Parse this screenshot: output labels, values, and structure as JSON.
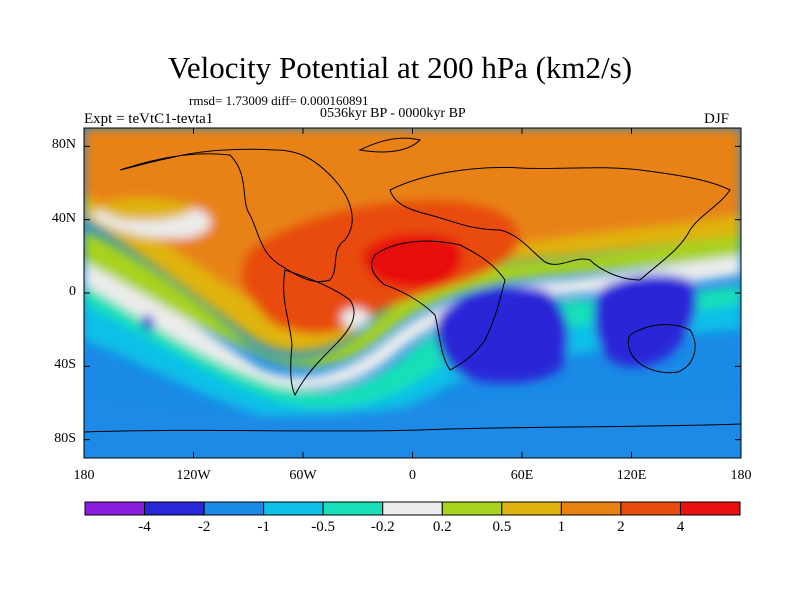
{
  "title": "Velocity Potential at 200 hPa (km2/s)",
  "stats_text": "rmsd= 1.73009 diff= 0.000160891",
  "period_text": "0536kyr BP - 0000kyr BP",
  "experiment_text": "Expt = teVtC1-tevta1",
  "season": "DJF",
  "map": {
    "lat_range": [
      -90,
      90
    ],
    "lon_range": [
      -180,
      180
    ],
    "y_tick_labels": [
      {
        "lat": 80,
        "label": "80N"
      },
      {
        "lat": 40,
        "label": "40N"
      },
      {
        "lat": 0,
        "label": "0"
      },
      {
        "lat": -40,
        "label": "40S"
      },
      {
        "lat": -80,
        "label": "80S"
      }
    ],
    "x_tick_labels": [
      {
        "lon": -180,
        "label": "180"
      },
      {
        "lon": -120,
        "label": "120W"
      },
      {
        "lon": -60,
        "label": "60W"
      },
      {
        "lon": 0,
        "label": "0"
      },
      {
        "lon": 60,
        "label": "60E"
      },
      {
        "lon": 120,
        "label": "120E"
      },
      {
        "lon": 180,
        "label": "180"
      }
    ]
  },
  "colorbar": {
    "colors": [
      "#8a1de0",
      "#2a27d8",
      "#1a8ae6",
      "#0fc0e8",
      "#18e0b8",
      "#ececec",
      "#a8d21c",
      "#e0b410",
      "#e88212",
      "#e84c0c",
      "#e81010"
    ],
    "labels": [
      "-4",
      "-2",
      "-1",
      "-0.5",
      "-0.2",
      "0.2",
      "0.5",
      "1",
      "2",
      "4"
    ]
  }
}
